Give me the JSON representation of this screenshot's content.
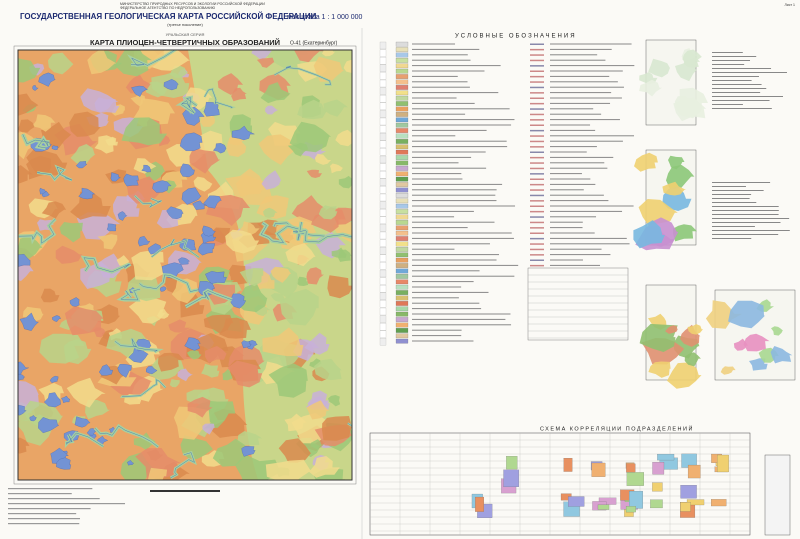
{
  "header": {
    "ministry": "МИНИСТЕРСТВО ПРИРОДНЫХ РЕСУРСОВ И ЭКОЛОГИИ РОССИЙСКОЙ ФЕДЕРАЦИИ",
    "agency": "ФЕДЕРАЛЬНОЕ АГЕНТСТВО ПО НЕДРОПОЛЬЗОВАНИЮ",
    "title": "ГОСУДАРСТВЕННАЯ ГЕОЛОГИЧЕСКАЯ КАРТА РОССИЙСКОЙ ФЕДЕРАЦИИ",
    "scale": "масштаба 1 : 1 000 000",
    "edition": "(третье поколение)",
    "series": "УРАЛЬСКАЯ СЕРИЯ",
    "map_title": "КАРТА ПЛИОЦЕН-ЧЕТВЕРТИЧНЫХ ОБРАЗОВАНИЙ",
    "sheet": "O-41 (Екатеринбург)",
    "page": "Лист 1"
  },
  "legend": {
    "title": "УСЛОВНЫЕ ОБОЗНАЧЕНИЯ"
  },
  "correlation": {
    "title": "СХЕМА КОРРЕЛЯЦИИ ПОДРАЗДЕЛЕНИЙ"
  }
}
